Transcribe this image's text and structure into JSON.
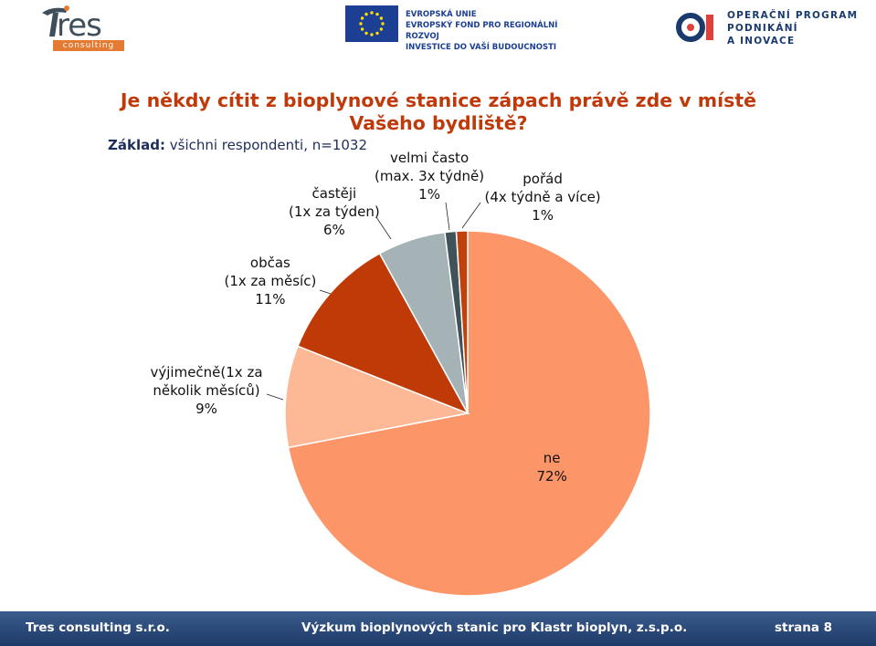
{
  "header": {
    "logo_word": "res",
    "logo_tagline": "consulting",
    "eu_lines": [
      "EVROPSKÁ UNIE",
      "EVROPSKÝ FOND PRO REGIONÁLNÍ ROZVOJ",
      "INVESTICE DO VAŠÍ BUDOUCNOSTI"
    ],
    "op_lines": [
      "OPERAČNÍ PROGRAM",
      "PODNIKÁNÍ",
      "A INOVACE"
    ]
  },
  "chart_data": {
    "type": "pie",
    "title": "Je někdy cítit z bioplynové stanice zápach právě zde v místě Vašeho bydliště?",
    "subtitle_bold": "Základ:",
    "subtitle_rest": " všichni respondenti, n=1032",
    "slices": [
      {
        "label_lines": [
          "ne",
          "72%"
        ],
        "value": 72,
        "color": "#fc9668"
      },
      {
        "label_lines": [
          "výjimečně(1x za",
          "několik měsíců)",
          "9%"
        ],
        "value": 9,
        "color": "#fdb896"
      },
      {
        "label_lines": [
          "občas",
          "(1x za měsíc)",
          "11%"
        ],
        "value": 11,
        "color": "#bf3a06"
      },
      {
        "label_lines": [
          "častěji",
          "(1x za týden)",
          "6%"
        ],
        "value": 6,
        "color": "#a6b3b6"
      },
      {
        "label_lines": [
          "velmi často",
          "(max. 3x týdně)",
          "1%"
        ],
        "value": 1,
        "color": "#3f5358"
      },
      {
        "label_lines": [
          "pořád",
          "(4x týdně a více)",
          "1%"
        ],
        "value": 1,
        "color": "#c0410c"
      }
    ]
  },
  "footer": {
    "left": "Tres consulting s.r.o.",
    "center": "Výzkum bioplynových stanic pro Klastr bioplyn, z.s.p.o.",
    "right": "strana 8"
  }
}
